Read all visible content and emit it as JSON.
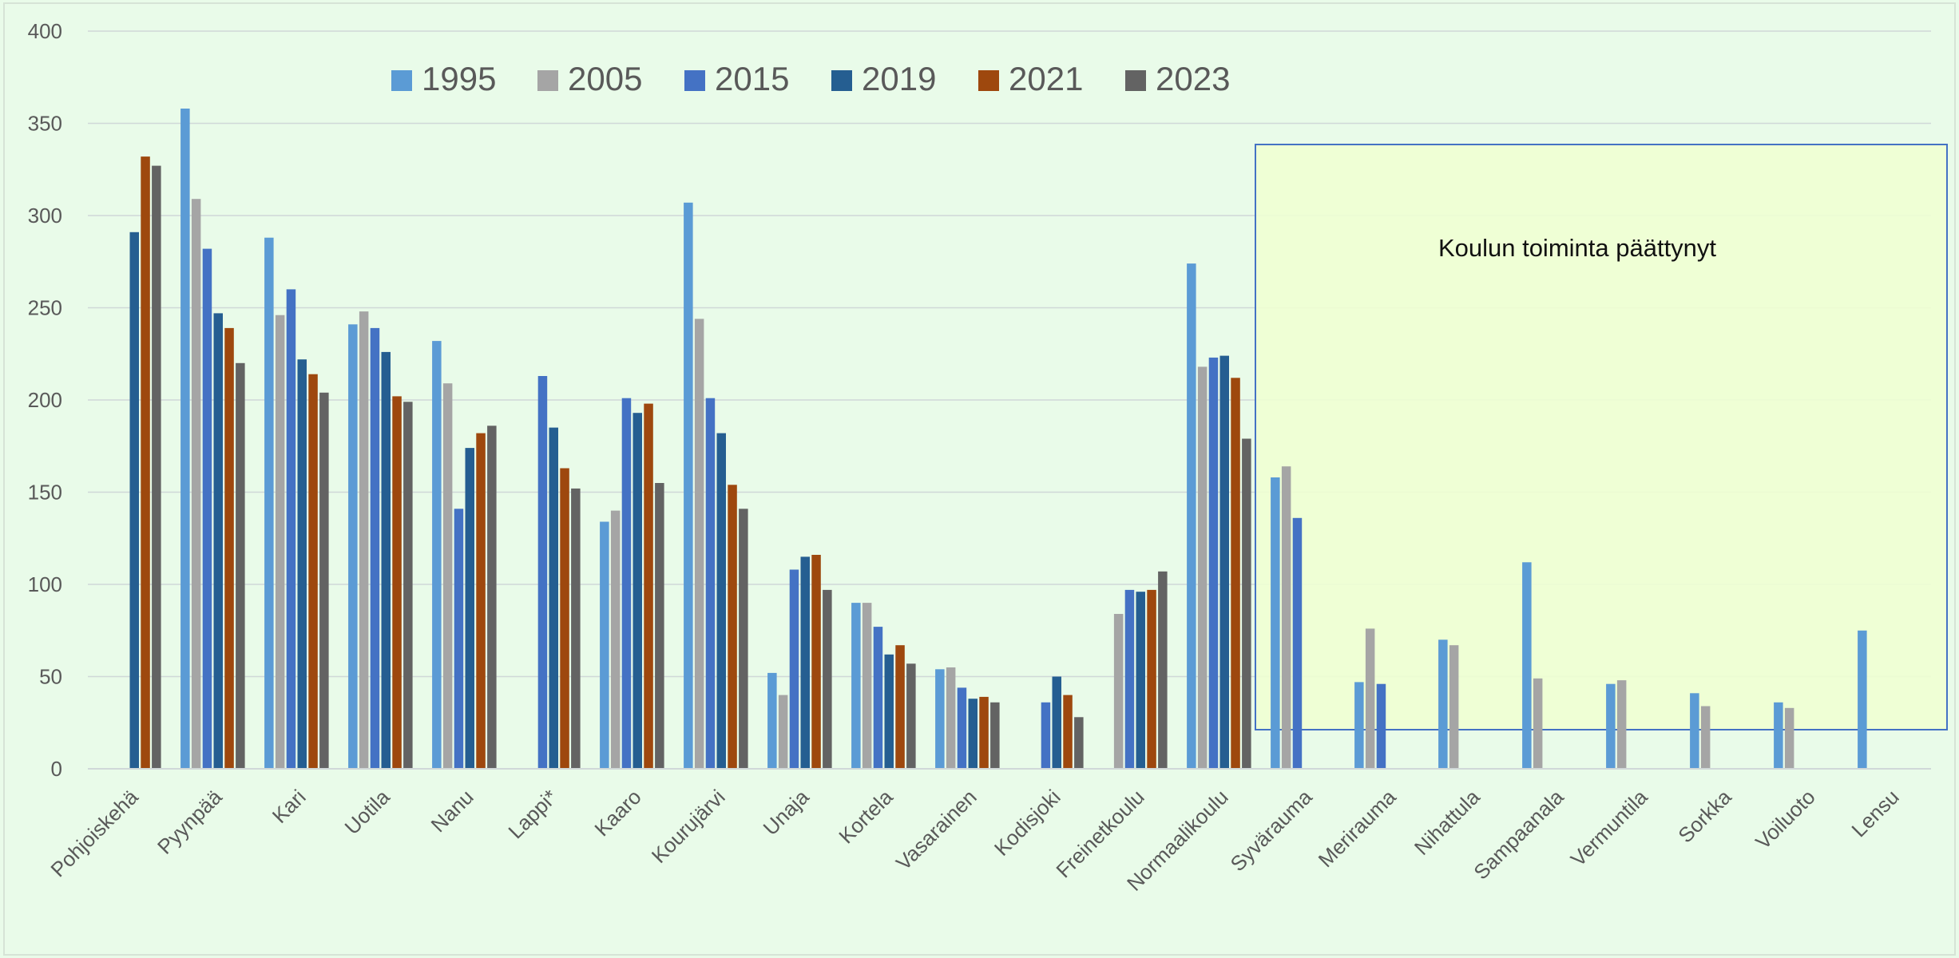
{
  "colors": {
    "background": "#e9fbe9",
    "gridline": "#d0d8d8",
    "axis_text": "#595959",
    "annotation_fill": "#efffd2",
    "annotation_border": "#4472c4"
  },
  "annotation": {
    "text": "Koulun toiminta päättynyt"
  },
  "chart_data": {
    "type": "bar",
    "title": "",
    "xlabel": "",
    "ylabel": "",
    "ylim": [
      0,
      400
    ],
    "yticks": [
      0,
      50,
      100,
      150,
      200,
      250,
      300,
      350,
      400
    ],
    "grid": true,
    "legend_position": "top",
    "categories": [
      "Pohjoiskehä",
      "Pyynpää",
      "Kari",
      "Uotila",
      "Nanu",
      "Lappi*",
      "Kaaro",
      "Kourujärvi",
      "Unaja",
      "Kortela",
      "Vasarainen",
      "Kodisjoki",
      "Freinetkoulu",
      "Normaalikoulu",
      "Syvärauma",
      "Merirauma",
      "Nihattula",
      "Sampaanala",
      "Vermuntila",
      "Sorkka",
      "Voiluoto",
      "Lensu"
    ],
    "series": [
      {
        "name": "1995",
        "color": "#5b9bd5",
        "values": [
          null,
          358,
          288,
          241,
          232,
          null,
          134,
          307,
          52,
          90,
          54,
          null,
          null,
          274,
          158,
          47,
          70,
          112,
          46,
          41,
          36,
          75
        ]
      },
      {
        "name": "2005",
        "color": "#a5a5a5",
        "values": [
          null,
          309,
          246,
          248,
          209,
          null,
          140,
          244,
          40,
          90,
          55,
          null,
          84,
          218,
          164,
          76,
          67,
          49,
          48,
          34,
          33,
          null
        ]
      },
      {
        "name": "2015",
        "color": "#4472c4",
        "values": [
          null,
          282,
          260,
          239,
          141,
          213,
          201,
          201,
          108,
          77,
          44,
          36,
          97,
          223,
          136,
          46,
          null,
          null,
          null,
          null,
          null,
          null
        ]
      },
      {
        "name": "2019",
        "color": "#255e91",
        "values": [
          291,
          247,
          222,
          226,
          174,
          185,
          193,
          182,
          115,
          62,
          38,
          50,
          96,
          224,
          null,
          null,
          null,
          null,
          null,
          null,
          null,
          null
        ]
      },
      {
        "name": "2021",
        "color": "#9e480e",
        "values": [
          332,
          239,
          214,
          202,
          182,
          163,
          198,
          154,
          116,
          67,
          39,
          40,
          97,
          212,
          null,
          null,
          null,
          null,
          null,
          null,
          null,
          null
        ]
      },
      {
        "name": "2023",
        "color": "#636363",
        "values": [
          327,
          220,
          204,
          199,
          186,
          152,
          155,
          141,
          97,
          57,
          36,
          28,
          107,
          179,
          null,
          null,
          null,
          null,
          null,
          null,
          null,
          null
        ]
      }
    ]
  }
}
